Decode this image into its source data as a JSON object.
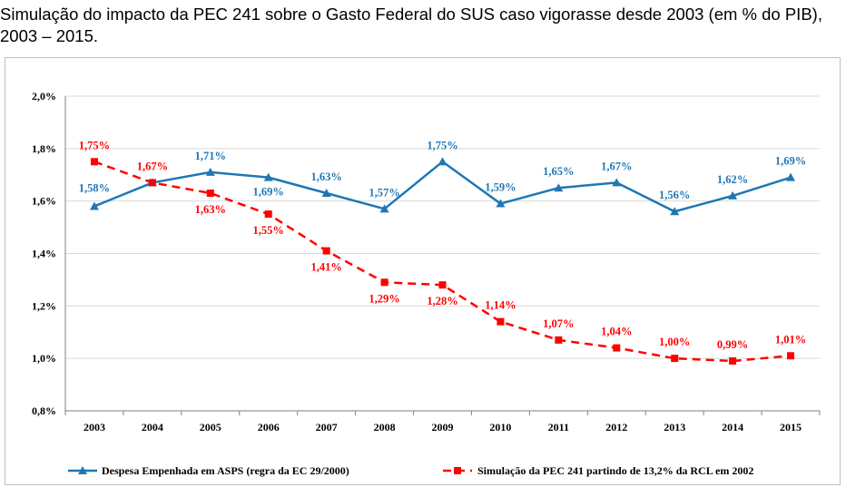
{
  "title": "Simulação do impacto da PEC 241 sobre o Gasto Federal do SUS caso vigorasse desde 2003 (em % do PIB), 2003 – 2015.",
  "colors": {
    "series1": "#1f77b4",
    "series2": "#ff0000",
    "grid": "#d9d9d9",
    "axis": "#7f7f7f"
  },
  "chart_data": {
    "type": "line",
    "categories": [
      "2003",
      "2004",
      "2005",
      "2006",
      "2007",
      "2008",
      "2009",
      "2010",
      "2011",
      "2012",
      "2013",
      "2014",
      "2015"
    ],
    "ylim": [
      0.8,
      2.0
    ],
    "yticks": [
      0.8,
      1.0,
      1.2,
      1.4,
      1.6,
      1.8,
      2.0
    ],
    "ytick_labels": [
      "0,8%",
      "1,0%",
      "1,2%",
      "1,4%",
      "1,6%",
      "1,8%",
      "2,0%"
    ],
    "grid": true,
    "legend_position": "bottom",
    "series": [
      {
        "name": "Despesa Empenhada em ASPS (regra da EC 29/2000)",
        "values": [
          1.58,
          1.67,
          1.71,
          1.69,
          1.63,
          1.57,
          1.75,
          1.59,
          1.65,
          1.67,
          1.56,
          1.62,
          1.69
        ],
        "labels": [
          "1,58%",
          "",
          "1,71%",
          "1,69%",
          "1,63%",
          "1,57%",
          "1,75%",
          "1,59%",
          "1,65%",
          "1,67%",
          "1,56%",
          "1,62%",
          "1,69%"
        ],
        "color": "#1f77b4",
        "marker": "triangle",
        "line_style": "solid"
      },
      {
        "name": "Simulação da PEC 241 partindo de 13,2% da RCL em 2002",
        "values": [
          1.75,
          1.67,
          1.63,
          1.55,
          1.41,
          1.29,
          1.28,
          1.14,
          1.07,
          1.04,
          1.0,
          0.99,
          1.01
        ],
        "labels": [
          "1,75%",
          "1,67%",
          "1,63%",
          "1,55%",
          "1,41%",
          "1,29%",
          "1,28%",
          "1,14%",
          "1,07%",
          "1,04%",
          "1,00%",
          "0,99%",
          "1,01%"
        ],
        "color": "#ff0000",
        "marker": "square",
        "line_style": "dashed"
      }
    ]
  }
}
